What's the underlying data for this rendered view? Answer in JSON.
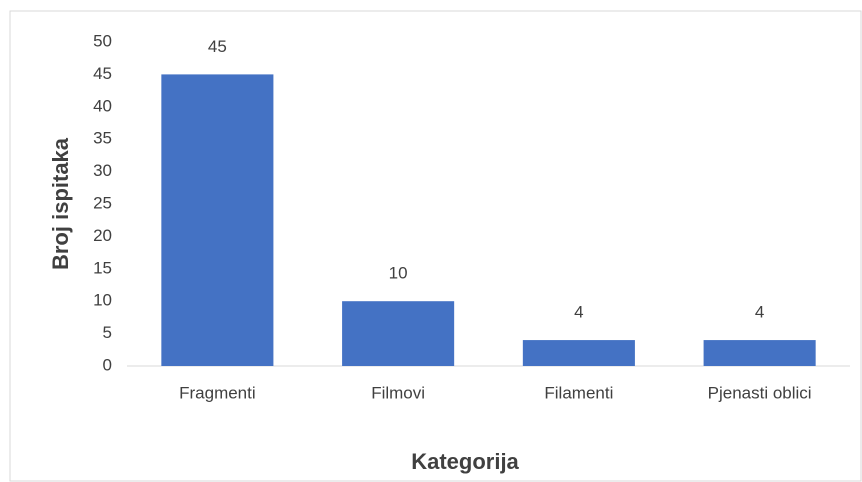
{
  "chart_data": {
    "type": "bar",
    "x_label": "Kategorija",
    "y_label": "Broj ispitaka",
    "categories": [
      "Fragmenti",
      "Filmovi",
      "Filamenti",
      "Pjenasti oblici"
    ],
    "values": [
      45,
      10,
      4,
      4
    ],
    "color": "#4472c4",
    "ylim": [
      0,
      50
    ],
    "yticks": [
      0,
      5,
      10,
      15,
      20,
      25,
      30,
      35,
      40,
      45,
      50
    ],
    "grid": false
  }
}
